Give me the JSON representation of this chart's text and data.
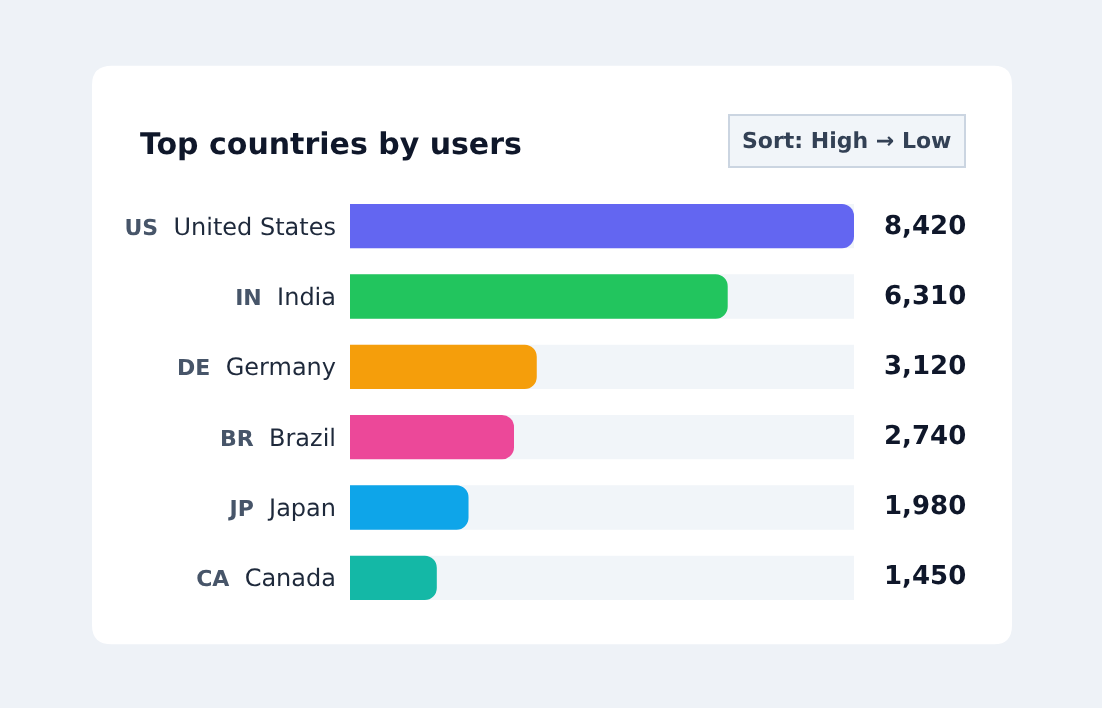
{
  "chart_data": {
    "type": "bar",
    "orientation": "horizontal",
    "title": "Top countries by users",
    "annotations": [
      "Sort: High → Low"
    ],
    "categories": [
      "US United States",
      "IN India",
      "DE Germany",
      "BR Brazil",
      "JP Japan",
      "CA Canada"
    ],
    "values": [
      8420,
      6310,
      3120,
      2740,
      1980,
      1450
    ],
    "colors": [
      "#6366f1",
      "#22c55e",
      "#f59e0b",
      "#ec4899",
      "#0ea5e9",
      "#14b8a6"
    ],
    "value_labels": [
      "8,420",
      "6,310",
      "3,120",
      "2,740",
      "1,980",
      "1,450"
    ],
    "xlim": [
      0,
      8420
    ],
    "tick_labels": "y",
    "grid": false,
    "legend": false
  }
}
